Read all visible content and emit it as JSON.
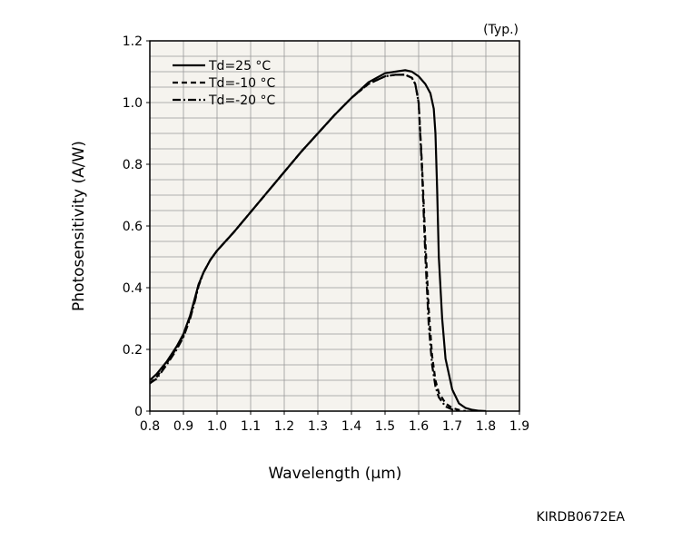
{
  "chart_data": {
    "type": "line",
    "title": "",
    "note": "(Typ.)",
    "xlabel": "Wavelength (µm)",
    "ylabel": "Photosensitivity (A/W)",
    "code": "KIRDB0672EA",
    "xlim": [
      0.8,
      1.9
    ],
    "ylim": [
      0,
      1.2
    ],
    "x_ticks": [
      "0.8",
      "0.9",
      "1.0",
      "1.1",
      "1.2",
      "1.3",
      "1.4",
      "1.5",
      "1.6",
      "1.7",
      "1.8",
      "1.9"
    ],
    "y_ticks": [
      "0",
      "0.2",
      "0.4",
      "0.6",
      "0.8",
      "1.0",
      "1.2"
    ],
    "grid": true,
    "legend_position": "top-left",
    "series": [
      {
        "name": "Td=25 °C",
        "style": "solid",
        "x": [
          0.8,
          0.82,
          0.85,
          0.88,
          0.9,
          0.92,
          0.935,
          0.945,
          0.96,
          0.98,
          1.0,
          1.05,
          1.1,
          1.15,
          1.2,
          1.25,
          1.3,
          1.35,
          1.4,
          1.45,
          1.5,
          1.53,
          1.56,
          1.58,
          1.6,
          1.62,
          1.635,
          1.645,
          1.65,
          1.655,
          1.66,
          1.67,
          1.68,
          1.7,
          1.72,
          1.74,
          1.76,
          1.78,
          1.8
        ],
        "y": [
          0.1,
          0.12,
          0.16,
          0.21,
          0.25,
          0.31,
          0.37,
          0.41,
          0.45,
          0.49,
          0.52,
          0.58,
          0.645,
          0.71,
          0.775,
          0.84,
          0.9,
          0.96,
          1.015,
          1.065,
          1.095,
          1.1,
          1.105,
          1.1,
          1.085,
          1.06,
          1.03,
          0.98,
          0.9,
          0.72,
          0.5,
          0.3,
          0.17,
          0.07,
          0.025,
          0.01,
          0.004,
          0.001,
          0
        ]
      },
      {
        "name": "Td=-10 °C",
        "style": "dashed",
        "x": [
          0.8,
          0.82,
          0.85,
          0.88,
          0.9,
          0.92,
          0.935,
          0.945,
          0.96,
          0.98,
          1.0,
          1.05,
          1.1,
          1.15,
          1.2,
          1.25,
          1.3,
          1.35,
          1.4,
          1.45,
          1.5,
          1.53,
          1.56,
          1.58,
          1.59,
          1.6,
          1.61,
          1.62,
          1.63,
          1.64,
          1.65,
          1.66,
          1.68,
          1.7,
          1.72,
          1.74
        ],
        "y": [
          0.09,
          0.11,
          0.155,
          0.205,
          0.245,
          0.305,
          0.365,
          0.41,
          0.45,
          0.49,
          0.52,
          0.58,
          0.645,
          0.71,
          0.775,
          0.84,
          0.9,
          0.96,
          1.015,
          1.06,
          1.085,
          1.09,
          1.09,
          1.08,
          1.06,
          1.0,
          0.8,
          0.55,
          0.33,
          0.18,
          0.1,
          0.06,
          0.025,
          0.01,
          0.004,
          0
        ]
      },
      {
        "name": "Td=-20 °C",
        "style": "dashdot",
        "x": [
          0.8,
          0.82,
          0.85,
          0.88,
          0.9,
          0.92,
          0.935,
          0.945,
          0.96,
          0.98,
          1.0,
          1.05,
          1.1,
          1.15,
          1.2,
          1.25,
          1.3,
          1.35,
          1.4,
          1.45,
          1.5,
          1.53,
          1.56,
          1.58,
          1.59,
          1.6,
          1.61,
          1.62,
          1.63,
          1.64,
          1.65,
          1.66,
          1.68,
          1.7,
          1.72
        ],
        "y": [
          0.09,
          0.105,
          0.15,
          0.2,
          0.24,
          0.3,
          0.36,
          0.405,
          0.45,
          0.49,
          0.52,
          0.58,
          0.645,
          0.71,
          0.775,
          0.84,
          0.9,
          0.96,
          1.015,
          1.06,
          1.085,
          1.09,
          1.09,
          1.08,
          1.06,
          1.0,
          0.78,
          0.5,
          0.28,
          0.15,
          0.08,
          0.045,
          0.015,
          0.005,
          0
        ]
      }
    ]
  }
}
